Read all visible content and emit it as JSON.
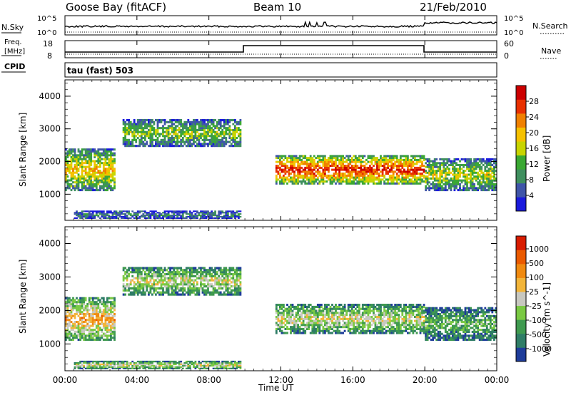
{
  "header": {
    "station": "Goose Bay (fitACF)",
    "beam": "Beam 10",
    "date": "21/Feb/2010"
  },
  "panels": {
    "noise": {
      "left_label": "N.Sky",
      "left_ticks": [
        "10^5",
        "10^0"
      ],
      "right_ticks": [
        "10^5",
        "10^0"
      ],
      "right_label": "N.Search"
    },
    "freq": {
      "left_label_1": "Freq.",
      "left_label_2": "[MHz]",
      "left_ticks": [
        "18",
        "8"
      ],
      "right_ticks": [
        "60",
        "0"
      ],
      "right_label": "Nave"
    },
    "cpid": {
      "label": "CPID",
      "mode_text": "tau (fast) 503"
    }
  },
  "chart_data": [
    {
      "type": "heatmap",
      "name": "power",
      "ylabel": "Slant Range [km]",
      "y_ticks": [
        "1000",
        "2000",
        "3000",
        "4000"
      ],
      "ylim": [
        200,
        4500
      ],
      "colorbar_label": "Power [dB]",
      "colorbar_ticks": [
        "4",
        "8",
        "12",
        "16",
        "20",
        "24",
        "28"
      ],
      "colors": [
        "#1a1adc",
        "#3f55a8",
        "#3f8f5e",
        "#3aa832",
        "#c8d400",
        "#f5c100",
        "#f08000",
        "#e83000",
        "#cc0000"
      ],
      "regions": [
        {
          "t0": 0.0,
          "t1": 2.8,
          "r0": 1100,
          "r1": 2400,
          "level": 0.55
        },
        {
          "t0": 3.2,
          "t1": 9.8,
          "r0": 2450,
          "r1": 3300,
          "level": 0.4
        },
        {
          "t0": 0.5,
          "t1": 9.8,
          "r0": 250,
          "r1": 500,
          "level": 0.25
        },
        {
          "t0": 11.7,
          "t1": 20.0,
          "r0": 1300,
          "r1": 2200,
          "level": 0.8
        },
        {
          "t0": 20.0,
          "t1": 24.0,
          "r0": 1100,
          "r1": 2100,
          "level": 0.45
        }
      ]
    },
    {
      "type": "heatmap",
      "name": "velocity",
      "ylabel": "Slant Range [km]",
      "y_ticks": [
        "1000",
        "2000",
        "3000",
        "4000"
      ],
      "ylim": [
        200,
        4500
      ],
      "colorbar_label": "Velocity [m s^-1]",
      "colorbar_ticks": [
        "1000",
        "500",
        "100",
        "25",
        "-25",
        "-100",
        "-500",
        "-1000"
      ],
      "colors": [
        "#1e3c9a",
        "#2f7d66",
        "#3f9a4f",
        "#7ac943",
        "#c8c8c0",
        "#f2b53a",
        "#f08a10",
        "#ea5a00",
        "#d81c00"
      ],
      "regions": [
        {
          "t0": 0.0,
          "t1": 2.8,
          "r0": 1100,
          "r1": 2400,
          "level": 0.6
        },
        {
          "t0": 3.2,
          "t1": 9.8,
          "r0": 2450,
          "r1": 3300,
          "level": 0.45
        },
        {
          "t0": 0.5,
          "t1": 9.8,
          "r0": 250,
          "r1": 500,
          "level": 0.5
        },
        {
          "t0": 11.7,
          "t1": 20.0,
          "r0": 1300,
          "r1": 2200,
          "level": 0.45
        },
        {
          "t0": 20.0,
          "t1": 24.0,
          "r0": 1100,
          "r1": 2100,
          "level": 0.3
        }
      ]
    }
  ],
  "x_axis": {
    "label": "Time UT",
    "ticks": [
      "00:00",
      "04:00",
      "08:00",
      "12:00",
      "16:00",
      "20:00",
      "00:00"
    ],
    "xlim": [
      0,
      24
    ]
  }
}
